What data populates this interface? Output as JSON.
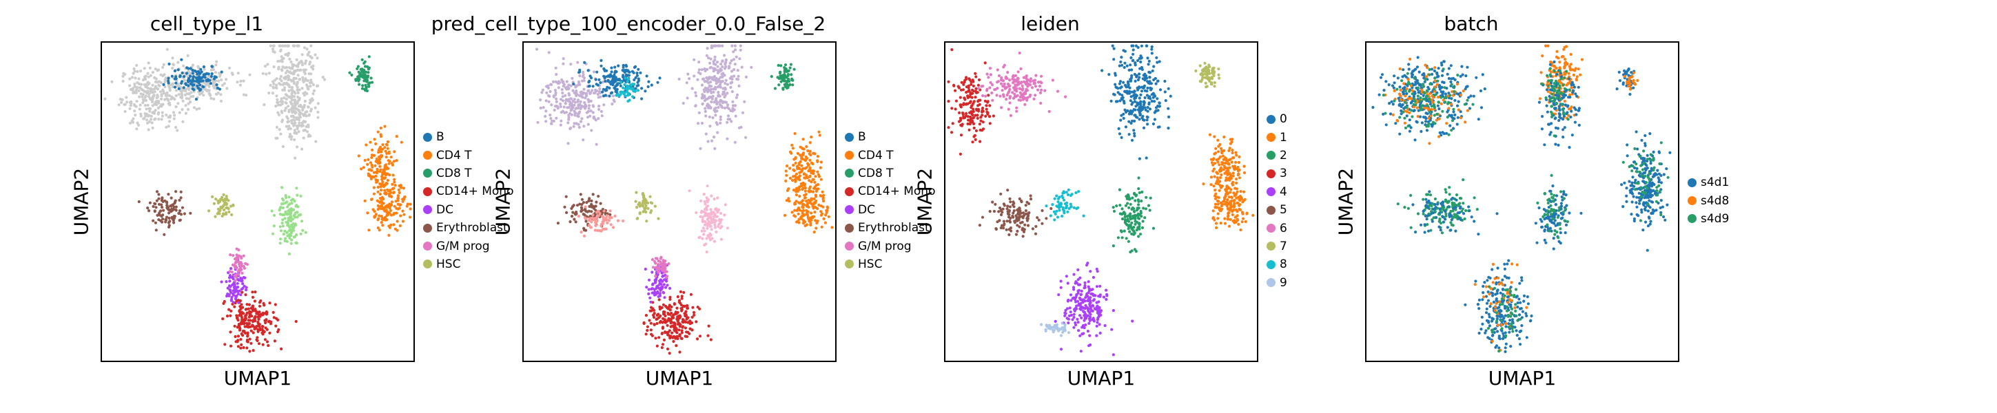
{
  "figure": {
    "x_axis_label": "UMAP1",
    "y_axis_label": "UMAP2"
  },
  "chart_data": [
    {
      "type": "scatter",
      "title": "cell_type_l1",
      "xlabel": "UMAP1",
      "ylabel": "UMAP2",
      "grid": false,
      "legend_position": "right",
      "legend": [
        {
          "label": "B",
          "color": "#1f77b4"
        },
        {
          "label": "CD4 T",
          "color": "#ff7f0e"
        },
        {
          "label": "CD8 T",
          "color": "#279e68"
        },
        {
          "label": "CD14+ Mono",
          "color": "#d62728"
        },
        {
          "label": "DC",
          "color": "#aa40fc"
        },
        {
          "label": "Erythroblast",
          "color": "#8c564b"
        },
        {
          "label": "G/M prog",
          "color": "#e377c2"
        },
        {
          "label": "HSC",
          "color": "#b5bd61"
        }
      ],
      "clusters": [
        {
          "category": "unassigned",
          "color": "#cccccc",
          "x": 0.16,
          "y": 0.83,
          "sx": 0.05,
          "sy": 0.05,
          "n": 260
        },
        {
          "category": "unassigned",
          "color": "#cccccc",
          "x": 0.3,
          "y": 0.87,
          "sx": 0.06,
          "sy": 0.03,
          "n": 220
        },
        {
          "category": "unassigned",
          "color": "#cccccc",
          "x": 0.61,
          "y": 0.88,
          "sx": 0.04,
          "sy": 0.06,
          "n": 240
        },
        {
          "category": "unassigned",
          "color": "#cccccc",
          "x": 0.63,
          "y": 0.77,
          "sx": 0.03,
          "sy": 0.04,
          "n": 140
        },
        {
          "category": "B",
          "color": "#1f77b4",
          "x": 0.3,
          "y": 0.89,
          "sx": 0.04,
          "sy": 0.02,
          "n": 110
        },
        {
          "category": "CD4 T",
          "color": "#ff7f0e",
          "x": 0.9,
          "y": 0.6,
          "sx": 0.025,
          "sy": 0.05,
          "n": 150
        },
        {
          "category": "CD4 T",
          "color": "#ff7f0e",
          "x": 0.92,
          "y": 0.48,
          "sx": 0.03,
          "sy": 0.035,
          "n": 130
        },
        {
          "category": "CD8 T",
          "color": "#279e68",
          "x": 0.84,
          "y": 0.89,
          "sx": 0.015,
          "sy": 0.02,
          "n": 70
        },
        {
          "category": "CD14+ Mono",
          "color": "#d62728",
          "x": 0.48,
          "y": 0.12,
          "sx": 0.04,
          "sy": 0.04,
          "n": 220
        },
        {
          "category": "DC",
          "color": "#aa40fc",
          "x": 0.43,
          "y": 0.24,
          "sx": 0.015,
          "sy": 0.03,
          "n": 80
        },
        {
          "category": "Erythroblast",
          "color": "#8c564b",
          "x": 0.21,
          "y": 0.47,
          "sx": 0.03,
          "sy": 0.025,
          "n": 100
        },
        {
          "category": "G/M prog",
          "color": "#e377c2",
          "x": 0.44,
          "y": 0.3,
          "sx": 0.015,
          "sy": 0.02,
          "n": 50
        },
        {
          "category": "HSC",
          "color": "#b5bd61",
          "x": 0.39,
          "y": 0.49,
          "sx": 0.015,
          "sy": 0.02,
          "n": 50
        },
        {
          "category": "unassigned",
          "color": "#98df8a",
          "x": 0.6,
          "y": 0.45,
          "sx": 0.02,
          "sy": 0.04,
          "n": 120
        }
      ]
    },
    {
      "type": "scatter",
      "title": "pred_cell_type_100_encoder_0.0_False_2",
      "xlabel": "UMAP1",
      "ylabel": "UMAP2",
      "grid": false,
      "legend_position": "right",
      "legend": [
        {
          "label": "B",
          "color": "#1f77b4"
        },
        {
          "label": "CD4 T",
          "color": "#ff7f0e"
        },
        {
          "label": "CD8 T",
          "color": "#279e68"
        },
        {
          "label": "CD14+ Mono",
          "color": "#d62728"
        },
        {
          "label": "DC",
          "color": "#aa40fc"
        },
        {
          "label": "Erythroblast",
          "color": "#8c564b"
        },
        {
          "label": "G/M prog",
          "color": "#e377c2"
        },
        {
          "label": "HSC",
          "color": "#b5bd61"
        }
      ],
      "clusters": [
        {
          "category": "unassigned",
          "color": "#c5b0d5",
          "x": 0.16,
          "y": 0.82,
          "sx": 0.05,
          "sy": 0.05,
          "n": 260
        },
        {
          "category": "unassigned",
          "color": "#c5b0d5",
          "x": 0.62,
          "y": 0.86,
          "sx": 0.04,
          "sy": 0.07,
          "n": 280
        },
        {
          "category": "B",
          "color": "#1f77b4",
          "x": 0.3,
          "y": 0.88,
          "sx": 0.05,
          "sy": 0.025,
          "n": 170
        },
        {
          "category": "unassigned",
          "color": "#17becf",
          "x": 0.33,
          "y": 0.85,
          "sx": 0.015,
          "sy": 0.015,
          "n": 40
        },
        {
          "category": "CD4 T",
          "color": "#ff7f0e",
          "x": 0.9,
          "y": 0.6,
          "sx": 0.025,
          "sy": 0.05,
          "n": 150
        },
        {
          "category": "CD4 T",
          "color": "#ff7f0e",
          "x": 0.92,
          "y": 0.48,
          "sx": 0.03,
          "sy": 0.035,
          "n": 130
        },
        {
          "category": "CD8 T",
          "color": "#279e68",
          "x": 0.84,
          "y": 0.89,
          "sx": 0.015,
          "sy": 0.02,
          "n": 70
        },
        {
          "category": "CD14+ Mono",
          "color": "#d62728",
          "x": 0.48,
          "y": 0.12,
          "sx": 0.04,
          "sy": 0.04,
          "n": 220
        },
        {
          "category": "DC",
          "color": "#aa40fc",
          "x": 0.43,
          "y": 0.24,
          "sx": 0.015,
          "sy": 0.03,
          "n": 80
        },
        {
          "category": "Erythroblast",
          "color": "#8c564b",
          "x": 0.21,
          "y": 0.47,
          "sx": 0.03,
          "sy": 0.025,
          "n": 90
        },
        {
          "category": "G/M prog",
          "color": "#e377c2",
          "x": 0.44,
          "y": 0.3,
          "sx": 0.015,
          "sy": 0.02,
          "n": 50
        },
        {
          "category": "HSC",
          "color": "#b5bd61",
          "x": 0.39,
          "y": 0.49,
          "sx": 0.015,
          "sy": 0.02,
          "n": 50
        },
        {
          "category": "unassigned",
          "color": "#f7b6d2",
          "x": 0.6,
          "y": 0.45,
          "sx": 0.02,
          "sy": 0.04,
          "n": 110
        },
        {
          "category": "unassigned",
          "color": "#ff9896",
          "x": 0.24,
          "y": 0.44,
          "sx": 0.03,
          "sy": 0.02,
          "n": 60
        }
      ]
    },
    {
      "type": "scatter",
      "title": "leiden",
      "xlabel": "UMAP1",
      "ylabel": "UMAP2",
      "grid": false,
      "legend_position": "right",
      "legend": [
        {
          "label": "0",
          "color": "#1f77b4"
        },
        {
          "label": "1",
          "color": "#ff7f0e"
        },
        {
          "label": "2",
          "color": "#279e68"
        },
        {
          "label": "3",
          "color": "#d62728"
        },
        {
          "label": "4",
          "color": "#aa40fc"
        },
        {
          "label": "5",
          "color": "#8c564b"
        },
        {
          "label": "6",
          "color": "#e377c2"
        },
        {
          "label": "7",
          "color": "#b5bd61"
        },
        {
          "label": "8",
          "color": "#17becf"
        },
        {
          "label": "9",
          "color": "#aec7e8"
        }
      ],
      "clusters": [
        {
          "category": "3",
          "color": "#d62728",
          "x": 0.08,
          "y": 0.8,
          "sx": 0.03,
          "sy": 0.05,
          "n": 160
        },
        {
          "category": "6",
          "color": "#e377c2",
          "x": 0.22,
          "y": 0.86,
          "sx": 0.05,
          "sy": 0.03,
          "n": 170
        },
        {
          "category": "0",
          "color": "#1f77b4",
          "x": 0.62,
          "y": 0.85,
          "sx": 0.04,
          "sy": 0.07,
          "n": 280
        },
        {
          "category": "7",
          "color": "#b5bd61",
          "x": 0.84,
          "y": 0.9,
          "sx": 0.015,
          "sy": 0.02,
          "n": 70
        },
        {
          "category": "1",
          "color": "#ff7f0e",
          "x": 0.9,
          "y": 0.6,
          "sx": 0.025,
          "sy": 0.05,
          "n": 150
        },
        {
          "category": "1",
          "color": "#ff7f0e",
          "x": 0.92,
          "y": 0.48,
          "sx": 0.03,
          "sy": 0.035,
          "n": 130
        },
        {
          "category": "5",
          "color": "#8c564b",
          "x": 0.22,
          "y": 0.46,
          "sx": 0.04,
          "sy": 0.03,
          "n": 120
        },
        {
          "category": "8",
          "color": "#17becf",
          "x": 0.38,
          "y": 0.49,
          "sx": 0.02,
          "sy": 0.02,
          "n": 60
        },
        {
          "category": "2",
          "color": "#279e68",
          "x": 0.6,
          "y": 0.45,
          "sx": 0.025,
          "sy": 0.045,
          "n": 130
        },
        {
          "category": "4",
          "color": "#aa40fc",
          "x": 0.45,
          "y": 0.17,
          "sx": 0.035,
          "sy": 0.05,
          "n": 220
        },
        {
          "category": "9",
          "color": "#aec7e8",
          "x": 0.35,
          "y": 0.1,
          "sx": 0.02,
          "sy": 0.01,
          "n": 40
        }
      ]
    },
    {
      "type": "scatter",
      "title": "batch",
      "xlabel": "UMAP1",
      "ylabel": "UMAP2",
      "grid": false,
      "legend_position": "right",
      "legend": [
        {
          "label": "s4d1",
          "color": "#1f77b4"
        },
        {
          "label": "s4d8",
          "color": "#ff7f0e"
        },
        {
          "label": "s4d9",
          "color": "#279e68"
        }
      ],
      "clusters": [
        {
          "category": "s4d1",
          "color": "#1f77b4",
          "x": 0.2,
          "y": 0.83,
          "sx": 0.07,
          "sy": 0.05,
          "n": 300
        },
        {
          "category": "s4d8",
          "color": "#ff7f0e",
          "x": 0.19,
          "y": 0.83,
          "sx": 0.06,
          "sy": 0.05,
          "n": 90
        },
        {
          "category": "s4d9",
          "color": "#279e68",
          "x": 0.2,
          "y": 0.82,
          "sx": 0.06,
          "sy": 0.05,
          "n": 90
        },
        {
          "category": "s4d8",
          "color": "#ff7f0e",
          "x": 0.62,
          "y": 0.88,
          "sx": 0.03,
          "sy": 0.05,
          "n": 160
        },
        {
          "category": "s4d1",
          "color": "#1f77b4",
          "x": 0.62,
          "y": 0.8,
          "sx": 0.03,
          "sy": 0.05,
          "n": 120
        },
        {
          "category": "s4d9",
          "color": "#279e68",
          "x": 0.61,
          "y": 0.84,
          "sx": 0.02,
          "sy": 0.04,
          "n": 50
        },
        {
          "category": "s4d1",
          "color": "#1f77b4",
          "x": 0.84,
          "y": 0.89,
          "sx": 0.015,
          "sy": 0.02,
          "n": 40
        },
        {
          "category": "s4d8",
          "color": "#ff7f0e",
          "x": 0.85,
          "y": 0.88,
          "sx": 0.012,
          "sy": 0.015,
          "n": 20
        },
        {
          "category": "s4d1",
          "color": "#1f77b4",
          "x": 0.9,
          "y": 0.55,
          "sx": 0.03,
          "sy": 0.06,
          "n": 220
        },
        {
          "category": "s4d9",
          "color": "#279e68",
          "x": 0.9,
          "y": 0.58,
          "sx": 0.025,
          "sy": 0.05,
          "n": 50
        },
        {
          "category": "s4d1",
          "color": "#1f77b4",
          "x": 0.6,
          "y": 0.45,
          "sx": 0.025,
          "sy": 0.04,
          "n": 100
        },
        {
          "category": "s4d9",
          "color": "#279e68",
          "x": 0.6,
          "y": 0.47,
          "sx": 0.02,
          "sy": 0.04,
          "n": 40
        },
        {
          "category": "s4d9",
          "color": "#279e68",
          "x": 0.25,
          "y": 0.47,
          "sx": 0.05,
          "sy": 0.03,
          "n": 120
        },
        {
          "category": "s4d1",
          "color": "#1f77b4",
          "x": 0.24,
          "y": 0.46,
          "sx": 0.05,
          "sy": 0.03,
          "n": 70
        },
        {
          "category": "s4d1",
          "color": "#1f77b4",
          "x": 0.44,
          "y": 0.16,
          "sx": 0.04,
          "sy": 0.06,
          "n": 200
        },
        {
          "category": "s4d8",
          "color": "#ff7f0e",
          "x": 0.44,
          "y": 0.18,
          "sx": 0.03,
          "sy": 0.05,
          "n": 40
        },
        {
          "category": "s4d9",
          "color": "#279e68",
          "x": 0.45,
          "y": 0.15,
          "sx": 0.03,
          "sy": 0.05,
          "n": 40
        }
      ]
    }
  ]
}
